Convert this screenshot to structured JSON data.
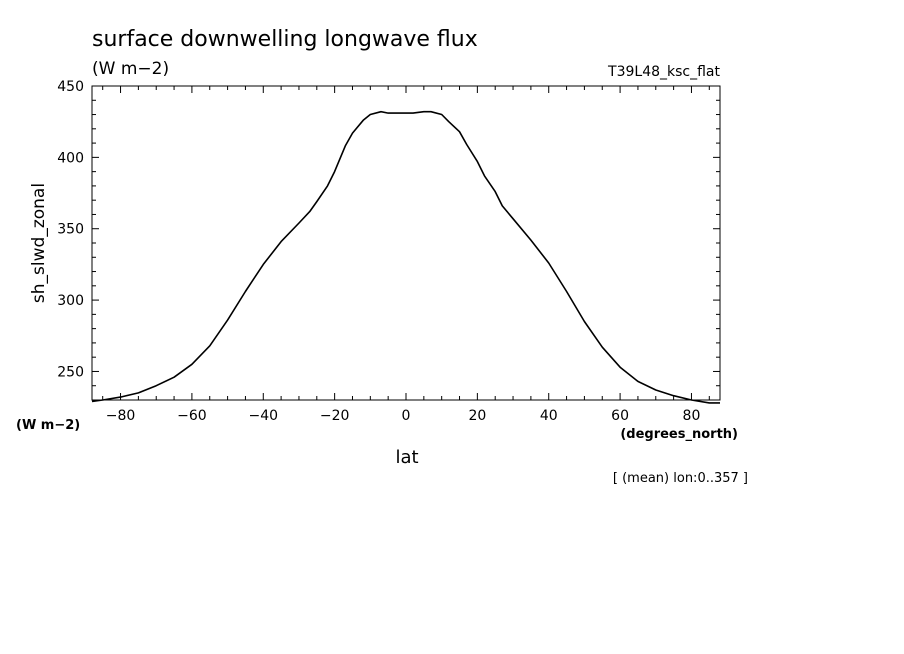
{
  "chart_data": {
    "type": "line",
    "title": "surface downwelling longwave flux",
    "units_label": "(W m−2)",
    "experiment": "T39L48_ksc_flat",
    "xlabel": "lat",
    "x_units": "(degrees_north)",
    "ylabel": "sh_slwd_zonal",
    "y_units": "(W m−2)",
    "subtitle": "[ (mean) lon:0..357 ]",
    "xlim": [
      -88,
      88
    ],
    "ylim": [
      230,
      450
    ],
    "x_ticks": [
      -80,
      -60,
      -40,
      -20,
      0,
      20,
      40,
      60,
      80
    ],
    "x_tick_labels": [
      "−80",
      "−60",
      "−40",
      "−20",
      "0",
      "20",
      "40",
      "60",
      "80"
    ],
    "y_ticks": [
      250,
      300,
      350,
      400,
      450
    ],
    "y_tick_labels": [
      "250",
      "300",
      "350",
      "400",
      "450"
    ],
    "grid": false,
    "legend": "none",
    "series": [
      {
        "x": [
          -88,
          -85,
          -80,
          -75,
          -70,
          -65,
          -60,
          -55,
          -50,
          -45,
          -40,
          -35,
          -30,
          -27,
          -25,
          -22,
          -20,
          -17,
          -15,
          -12,
          -10,
          -7,
          -5,
          -2,
          0,
          2,
          5,
          7,
          10,
          12,
          15,
          17,
          20,
          22,
          25,
          27,
          30,
          35,
          40,
          45,
          50,
          55,
          60,
          65,
          70,
          75,
          80,
          85,
          88
        ],
        "y": [
          229,
          230,
          232,
          235,
          240,
          246,
          255,
          268,
          286,
          306,
          325,
          341,
          354,
          362,
          369,
          380,
          390,
          408,
          417,
          426,
          430,
          432,
          431,
          431,
          431,
          431,
          432,
          432,
          430,
          425,
          418,
          409,
          397,
          387,
          376,
          366,
          357,
          342,
          326,
          306,
          285,
          267,
          253,
          243,
          237,
          233,
          230,
          228,
          228
        ]
      }
    ]
  }
}
